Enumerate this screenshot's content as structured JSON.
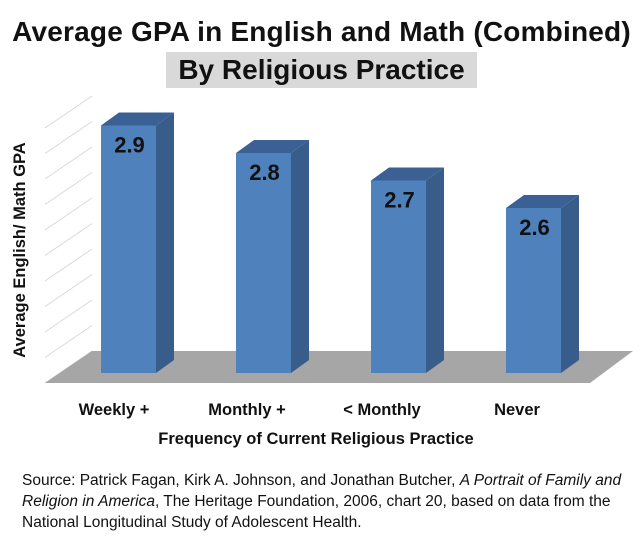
{
  "chart_data": {
    "type": "bar",
    "title": "Average GPA in English and Math (Combined)",
    "subtitle": "By Religious Practice",
    "xlabel": "Frequency of Current Religious Practice",
    "ylabel": "Average English/ Math GPA",
    "categories": [
      "Weekly +",
      "Monthly +",
      "< Monthly",
      "Never"
    ],
    "values": [
      2.9,
      2.8,
      2.7,
      2.6
    ],
    "data_labels": [
      "2.9",
      "2.8",
      "2.7",
      "2.6"
    ],
    "ylim": [
      2.0,
      3.0
    ],
    "grid": true,
    "three_d": true,
    "colors": {
      "bar_front": "#4f81bd",
      "bar_side": "#385d8a",
      "bar_top": "#3a6094",
      "floor": "#a6a6a6",
      "grid": "#d9d9d9"
    }
  },
  "source": {
    "prefix": "Source:  Patrick Fagan, Kirk A. Johnson, and Jonathan Butcher, ",
    "italic": "A Portrait of Family and Religion in America",
    "suffix": ", The Heritage Foundation, 2006, chart 20, based on data from the National Longitudinal Study of Adolescent Health."
  }
}
